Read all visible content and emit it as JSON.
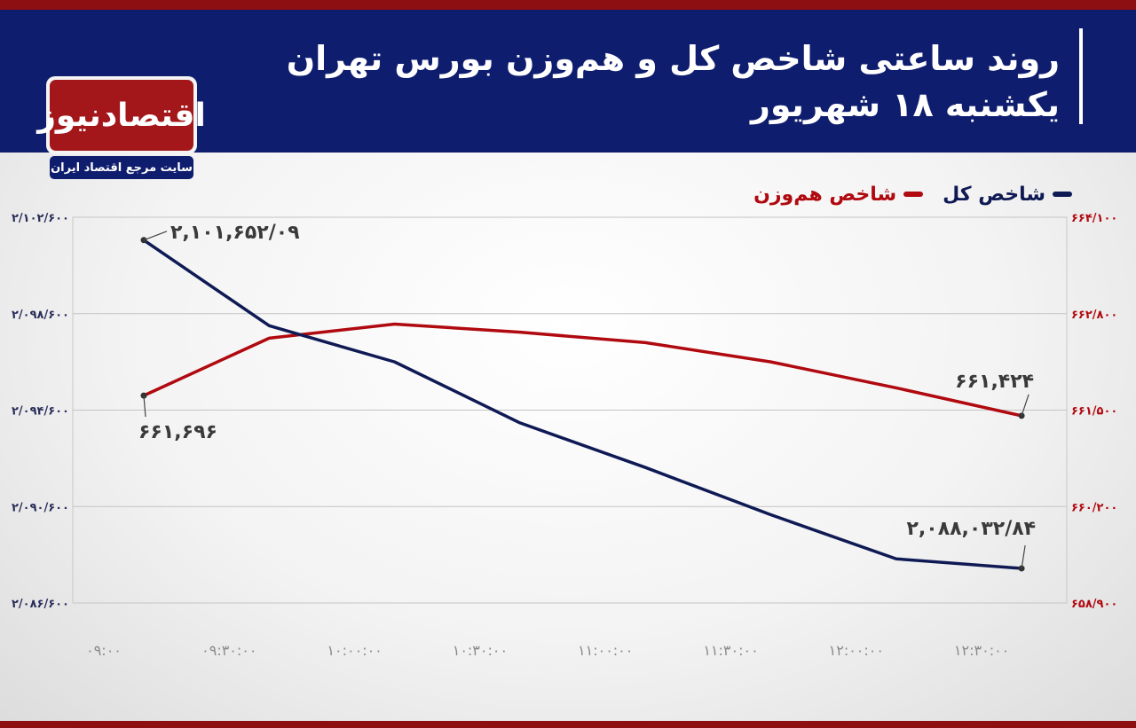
{
  "header": {
    "title_line1": "روند ساعتی شاخص کل و هم‌وزن بورس تهران",
    "title_line2": "یکشنبه ۱۸ شهریور"
  },
  "logo": {
    "name": "اقتصادنیوز",
    "tagline": "سایت مرجع اقتصاد ایران"
  },
  "colors": {
    "brand_red": "#a3171b",
    "brand_navy": "#0f1d6e",
    "series_total": "#0f1a55",
    "series_equal": "#b0090f"
  },
  "chart_data": {
    "type": "line",
    "title": "",
    "grid": true,
    "legend": "top-right",
    "x": [
      "۰۹:۰۰",
      "۰۹:۳۰:۰۰",
      "۱۰:۰۰:۰۰",
      "۱۰:۳۰:۰۰",
      "۱۱:۰۰:۰۰",
      "۱۱:۳۰:۰۰",
      "۱۲:۰۰:۰۰",
      "۱۲:۳۰:۰۰"
    ],
    "left_axis": {
      "ticks": [
        "۲/۱۰۲/۶۰۰",
        "۲/۰۹۸/۶۰۰",
        "۲/۰۹۴/۶۰۰",
        "۲/۰۹۰/۶۰۰",
        "۲/۰۸۶/۶۰۰"
      ],
      "tick_values": [
        2102600,
        2098600,
        2094600,
        2090600,
        2086600
      ],
      "range": [
        2086600,
        2102600
      ]
    },
    "right_axis": {
      "ticks": [
        "۶۶۴/۱۰۰",
        "۶۶۲/۸۰۰",
        "۶۶۱/۵۰۰",
        "۶۶۰/۲۰۰",
        "۶۵۸/۹۰۰"
      ],
      "tick_values": [
        664100,
        662800,
        661500,
        660200,
        658900
      ],
      "range": [
        658900,
        664100
      ]
    },
    "series": [
      {
        "name": "شاخص کل",
        "axis": "left",
        "x_times": [
          "09:00",
          "09:30",
          "10:00",
          "10:30",
          "11:00",
          "11:30",
          "12:00",
          "12:30"
        ],
        "values": [
          2101652.09,
          2098100,
          2096600,
          2094070,
          2092220,
          2090260,
          2088430,
          2088032.84
        ],
        "start_label": "۲,۱۰۱,۶۵۲/۰۹",
        "end_label": "۲,۰۸۸,۰۳۲/۸۴"
      },
      {
        "name": "شاخص هم‌وزن",
        "axis": "right",
        "x_times": [
          "09:00",
          "09:30",
          "10:00",
          "10:30",
          "11:00",
          "11:30",
          "12:00",
          "12:30"
        ],
        "values": [
          661696,
          662470,
          662660,
          662550,
          662410,
          662150,
          661800,
          661424
        ],
        "start_label": "۶۶۱,۶۹۶",
        "end_label": "۶۶۱,۴۲۴"
      }
    ]
  }
}
